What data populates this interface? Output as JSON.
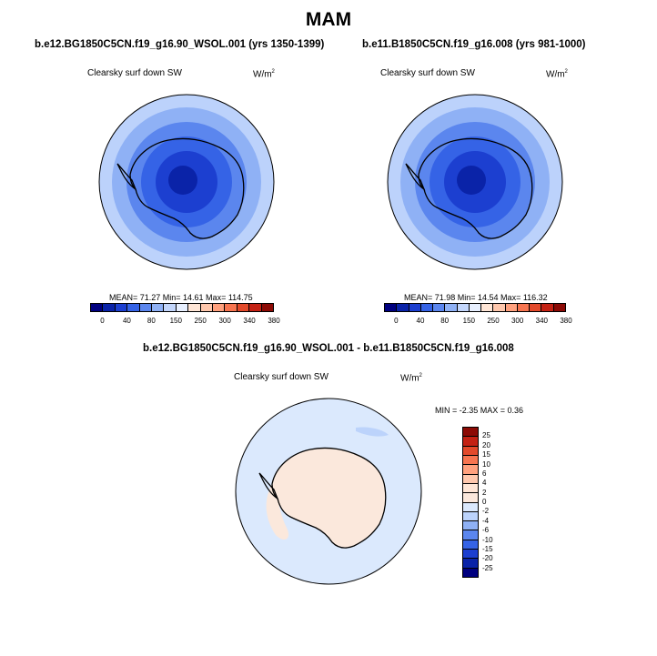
{
  "figure": {
    "title": "MAM",
    "units_base": "W/m",
    "units_exp": "2"
  },
  "panels": [
    {
      "case": "b.e12.BG1850C5CN.f19_g16.90_WSOL.001 (yrs 1350-1399)",
      "variable": "Clearsky surf down SW",
      "stats": "MEAN=  71.27  Min=  14.61  Max=  114.75"
    },
    {
      "case": "b.e11.B1850C5CN.f19_g16.008 (yrs 981-1000)",
      "variable": "Clearsky surf down SW",
      "stats": "MEAN=  71.98  Min=  14.54  Max=  116.32"
    }
  ],
  "difference": {
    "title": "b.e12.BG1850C5CN.f19_g16.90_WSOL.001 - b.e11.B1850C5CN.f19_g16.008",
    "variable": "Clearsky surf down SW",
    "stats": "MIN =  -2.35 MAX =   0.36"
  },
  "colorbar_main": {
    "labels": [
      "0",
      "40",
      "80",
      "150",
      "250",
      "300",
      "340",
      "380"
    ],
    "colors": [
      "#00007f",
      "#0a23a8",
      "#1c3fd0",
      "#3563e6",
      "#5b86ee",
      "#8fb1f5",
      "#c3d6fb",
      "#e8f0ff",
      "#ffe6d6",
      "#ffc8ad",
      "#ffa17e",
      "#f77550",
      "#e34a2b",
      "#c42214",
      "#8c0a05"
    ]
  },
  "colorbar_diff": {
    "labels": [
      "25",
      "20",
      "15",
      "10",
      "6",
      "4",
      "2",
      "0",
      "-2",
      "-4",
      "-6",
      "-10",
      "-15",
      "-20",
      "-25"
    ],
    "colors": [
      "#8c0a05",
      "#c42214",
      "#e34a2b",
      "#f77550",
      "#ffa17e",
      "#ffc8ad",
      "#ffe6d6",
      "#fbe8dc",
      "#dbe9fd",
      "#bcd3fb",
      "#8fb1f5",
      "#5b86ee",
      "#3563e6",
      "#1c3fd0",
      "#0a23a8",
      "#00007f"
    ]
  },
  "chart_data": [
    {
      "type": "heatmap",
      "title": "b.e12.BG1850C5CN.f19_g16.90_WSOL.001 (yrs 1350-1399)",
      "variable": "Clearsky surf down SW",
      "units": "W/m2",
      "projection": "south polar stereographic",
      "mean": 71.27,
      "min": 14.61,
      "max": 114.75,
      "contour_levels": [
        0,
        20,
        40,
        60,
        80,
        100,
        150,
        200,
        250,
        275,
        300,
        320,
        340,
        360,
        380
      ]
    },
    {
      "type": "heatmap",
      "title": "b.e11.B1850C5CN.f19_g16.008 (yrs 981-1000)",
      "variable": "Clearsky surf down SW",
      "units": "W/m2",
      "projection": "south polar stereographic",
      "mean": 71.98,
      "min": 14.54,
      "max": 116.32,
      "contour_levels": [
        0,
        20,
        40,
        60,
        80,
        100,
        150,
        200,
        250,
        275,
        300,
        320,
        340,
        360,
        380
      ]
    },
    {
      "type": "heatmap",
      "title": "b.e12.BG1850C5CN.f19_g16.90_WSOL.001 - b.e11.B1850C5CN.f19_g16.008",
      "variable": "Clearsky surf down SW",
      "units": "W/m2",
      "projection": "south polar stereographic",
      "min": -2.35,
      "max": 0.36,
      "contour_levels": [
        -25,
        -20,
        -15,
        -10,
        -6,
        -4,
        -2,
        0,
        2,
        4,
        6,
        10,
        15,
        20,
        25
      ]
    }
  ]
}
